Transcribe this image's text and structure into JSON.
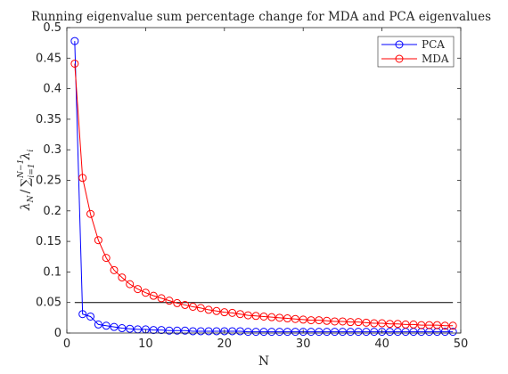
{
  "chart_data": {
    "type": "line",
    "title": "Running eigenvalue sum percentage change for MDA and PCA eigenvalues",
    "xlabel": "N",
    "ylabel": "λN / ∑i=1N−1 λi",
    "ylabel_parts": {
      "lambda": "λ",
      "sub_n": "N",
      "slash": "/",
      "sigma": "∑",
      "upper_limit": "N−1",
      "lower_limit": "i=1",
      "sub_i": "i"
    },
    "xlim": [
      0,
      50
    ],
    "ylim": [
      0,
      0.5
    ],
    "xticks": [
      0,
      10,
      20,
      30,
      40,
      50
    ],
    "xtick_labels": [
      "0",
      "10",
      "20",
      "30",
      "40",
      "50"
    ],
    "yticks": [
      0,
      0.05,
      0.1,
      0.15,
      0.2,
      0.25,
      0.3,
      0.35,
      0.4,
      0.45,
      0.5
    ],
    "ytick_labels": [
      "0",
      "0.05",
      "0.1",
      "0.15",
      "0.2",
      "0.25",
      "0.3",
      "0.35",
      "0.4",
      "0.45",
      "0.5"
    ],
    "grid": false,
    "legend_position": "top-right",
    "reference_line": {
      "y": 0.05,
      "x_range": [
        1,
        49
      ],
      "color": "#000000"
    },
    "x": [
      1,
      2,
      3,
      4,
      5,
      6,
      7,
      8,
      9,
      10,
      11,
      12,
      13,
      14,
      15,
      16,
      17,
      18,
      19,
      20,
      21,
      22,
      23,
      24,
      25,
      26,
      27,
      28,
      29,
      30,
      31,
      32,
      33,
      34,
      35,
      36,
      37,
      38,
      39,
      40,
      41,
      42,
      43,
      44,
      45,
      46,
      47,
      48,
      49
    ],
    "series": [
      {
        "name": "PCA",
        "color": "#0000ff",
        "marker": "circle",
        "values": [
          0.478,
          0.031,
          0.027,
          0.014,
          0.012,
          0.01,
          0.008,
          0.007,
          0.006,
          0.006,
          0.005,
          0.005,
          0.004,
          0.004,
          0.004,
          0.003,
          0.003,
          0.003,
          0.003,
          0.003,
          0.003,
          0.003,
          0.002,
          0.002,
          0.002,
          0.002,
          0.002,
          0.002,
          0.002,
          0.002,
          0.002,
          0.002,
          0.002,
          0.002,
          0.002,
          0.002,
          0.002,
          0.002,
          0.002,
          0.002,
          0.002,
          0.002,
          0.002,
          0.002,
          0.002,
          0.002,
          0.002,
          0.002,
          0.002
        ]
      },
      {
        "name": "MDA",
        "color": "#ff0000",
        "marker": "circle",
        "values": [
          0.441,
          0.254,
          0.195,
          0.152,
          0.123,
          0.103,
          0.091,
          0.08,
          0.072,
          0.066,
          0.061,
          0.057,
          0.053,
          0.049,
          0.046,
          0.043,
          0.041,
          0.038,
          0.036,
          0.034,
          0.033,
          0.031,
          0.029,
          0.028,
          0.027,
          0.026,
          0.025,
          0.024,
          0.023,
          0.022,
          0.021,
          0.021,
          0.02,
          0.019,
          0.019,
          0.018,
          0.018,
          0.017,
          0.016,
          0.016,
          0.015,
          0.015,
          0.014,
          0.014,
          0.013,
          0.013,
          0.013,
          0.012,
          0.012
        ]
      }
    ]
  }
}
